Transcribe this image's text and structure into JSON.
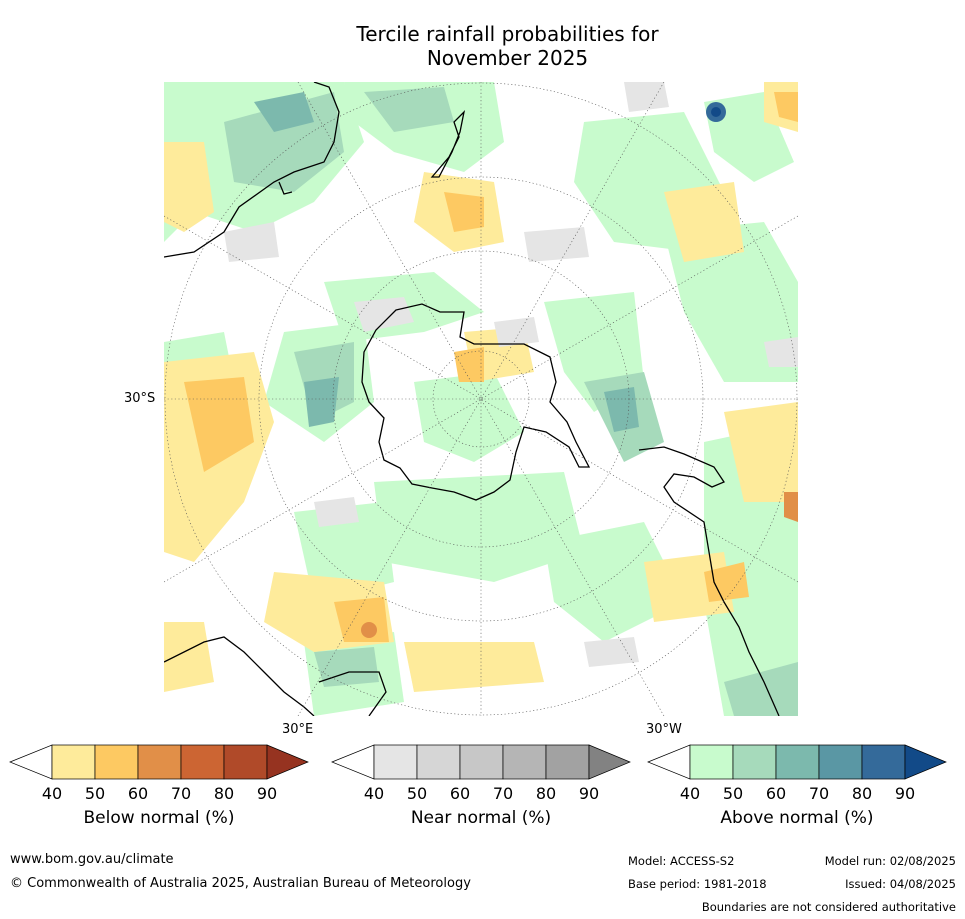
{
  "title_line1": "Tercile rainfall probabilities for",
  "title_line2": "November 2025",
  "map": {
    "projection": "south-polar-stereographic",
    "lat_label_left": "30°S",
    "lon_label_bottom_left": "30°E",
    "lon_label_bottom_right": "30°W"
  },
  "colorbars": [
    {
      "name": "below",
      "label": "Below normal (%)",
      "ticks": [
        "40",
        "50",
        "60",
        "70",
        "80",
        "90"
      ],
      "colors": [
        "#ffffff",
        "#feeb9b",
        "#fdc962",
        "#e18f48",
        "#cc6533",
        "#b04a29",
        "#963320"
      ]
    },
    {
      "name": "near",
      "label": "Near normal (%)",
      "ticks": [
        "40",
        "50",
        "60",
        "70",
        "80",
        "90"
      ],
      "colors": [
        "#ffffff",
        "#e5e5e5",
        "#d6d6d6",
        "#c7c7c7",
        "#b5b5b5",
        "#a2a2a2",
        "#828282"
      ]
    },
    {
      "name": "above",
      "label": "Above normal (%)",
      "ticks": [
        "40",
        "50",
        "60",
        "70",
        "80",
        "90"
      ],
      "colors": [
        "#ffffff",
        "#c8fbcd",
        "#a6dabb",
        "#7cb9ad",
        "#5a97a4",
        "#346a9a",
        "#124a88"
      ]
    }
  ],
  "footer": {
    "url": "www.bom.gov.au/climate",
    "copyright": "© Commonwealth of Australia 2025, Australian Bureau of Meteorology",
    "model": "Model: ACCESS-S2",
    "base_period": "Base period: 1981-2018",
    "model_run": "Model run: 02/08/2025",
    "issued": "Issued: 04/08/2025",
    "disclaimer": "Boundaries are not considered authoritative"
  }
}
